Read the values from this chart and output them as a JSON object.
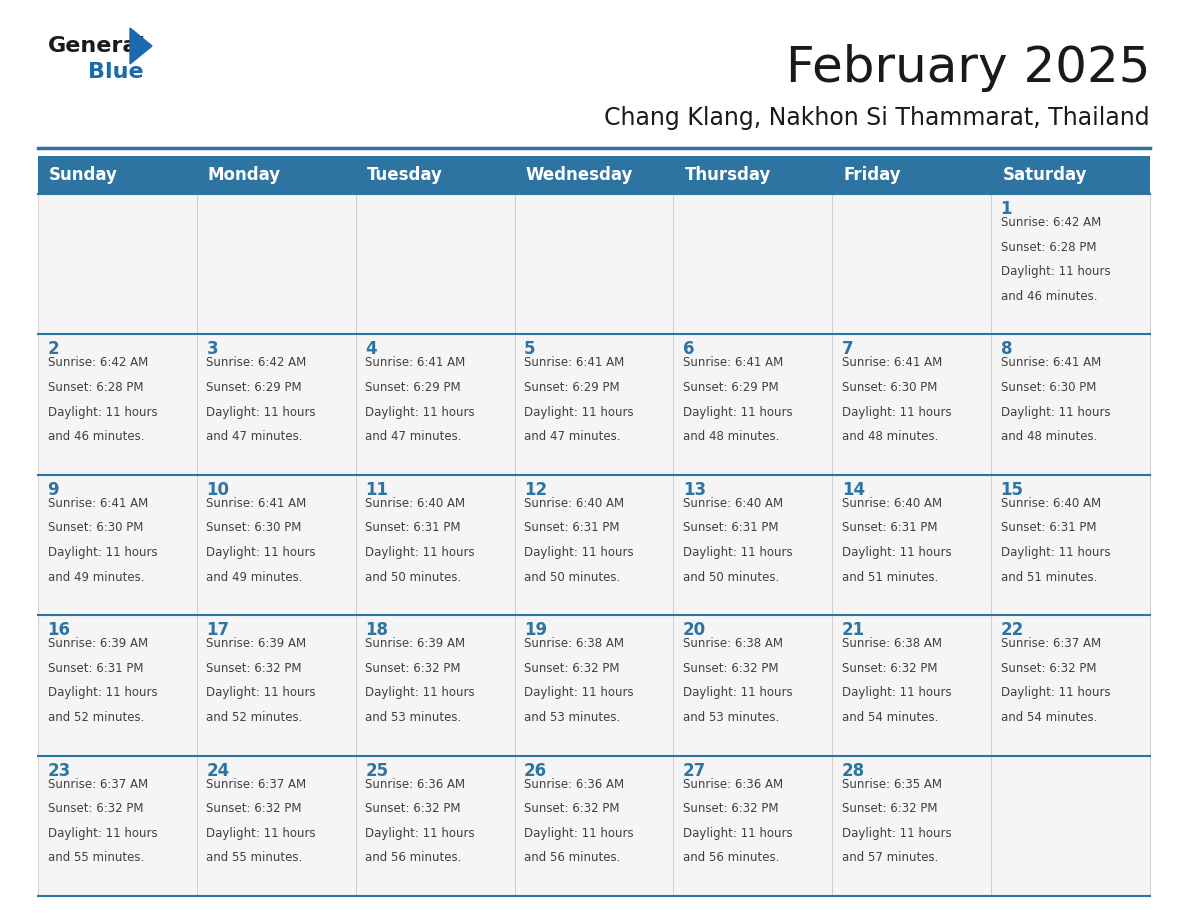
{
  "title": "February 2025",
  "subtitle": "Chang Klang, Nakhon Si Thammarat, Thailand",
  "header_bg": "#2E74A3",
  "header_text_color": "#FFFFFF",
  "cell_bg": "#F5F5F5",
  "day_number_color": "#2E74A3",
  "text_color": "#404040",
  "border_color": "#2E74A3",
  "days_of_week": [
    "Sunday",
    "Monday",
    "Tuesday",
    "Wednesday",
    "Thursday",
    "Friday",
    "Saturday"
  ],
  "weeks": [
    [
      {
        "day": null,
        "sunrise": null,
        "sunset": null,
        "daylight": null
      },
      {
        "day": null,
        "sunrise": null,
        "sunset": null,
        "daylight": null
      },
      {
        "day": null,
        "sunrise": null,
        "sunset": null,
        "daylight": null
      },
      {
        "day": null,
        "sunrise": null,
        "sunset": null,
        "daylight": null
      },
      {
        "day": null,
        "sunrise": null,
        "sunset": null,
        "daylight": null
      },
      {
        "day": null,
        "sunrise": null,
        "sunset": null,
        "daylight": null
      },
      {
        "day": 1,
        "sunrise": "6:42 AM",
        "sunset": "6:28 PM",
        "daylight": "11 hours and 46 minutes."
      }
    ],
    [
      {
        "day": 2,
        "sunrise": "6:42 AM",
        "sunset": "6:28 PM",
        "daylight": "11 hours and 46 minutes."
      },
      {
        "day": 3,
        "sunrise": "6:42 AM",
        "sunset": "6:29 PM",
        "daylight": "11 hours and 47 minutes."
      },
      {
        "day": 4,
        "sunrise": "6:41 AM",
        "sunset": "6:29 PM",
        "daylight": "11 hours and 47 minutes."
      },
      {
        "day": 5,
        "sunrise": "6:41 AM",
        "sunset": "6:29 PM",
        "daylight": "11 hours and 47 minutes."
      },
      {
        "day": 6,
        "sunrise": "6:41 AM",
        "sunset": "6:29 PM",
        "daylight": "11 hours and 48 minutes."
      },
      {
        "day": 7,
        "sunrise": "6:41 AM",
        "sunset": "6:30 PM",
        "daylight": "11 hours and 48 minutes."
      },
      {
        "day": 8,
        "sunrise": "6:41 AM",
        "sunset": "6:30 PM",
        "daylight": "11 hours and 48 minutes."
      }
    ],
    [
      {
        "day": 9,
        "sunrise": "6:41 AM",
        "sunset": "6:30 PM",
        "daylight": "11 hours and 49 minutes."
      },
      {
        "day": 10,
        "sunrise": "6:41 AM",
        "sunset": "6:30 PM",
        "daylight": "11 hours and 49 minutes."
      },
      {
        "day": 11,
        "sunrise": "6:40 AM",
        "sunset": "6:31 PM",
        "daylight": "11 hours and 50 minutes."
      },
      {
        "day": 12,
        "sunrise": "6:40 AM",
        "sunset": "6:31 PM",
        "daylight": "11 hours and 50 minutes."
      },
      {
        "day": 13,
        "sunrise": "6:40 AM",
        "sunset": "6:31 PM",
        "daylight": "11 hours and 50 minutes."
      },
      {
        "day": 14,
        "sunrise": "6:40 AM",
        "sunset": "6:31 PM",
        "daylight": "11 hours and 51 minutes."
      },
      {
        "day": 15,
        "sunrise": "6:40 AM",
        "sunset": "6:31 PM",
        "daylight": "11 hours and 51 minutes."
      }
    ],
    [
      {
        "day": 16,
        "sunrise": "6:39 AM",
        "sunset": "6:31 PM",
        "daylight": "11 hours and 52 minutes."
      },
      {
        "day": 17,
        "sunrise": "6:39 AM",
        "sunset": "6:32 PM",
        "daylight": "11 hours and 52 minutes."
      },
      {
        "day": 18,
        "sunrise": "6:39 AM",
        "sunset": "6:32 PM",
        "daylight": "11 hours and 53 minutes."
      },
      {
        "day": 19,
        "sunrise": "6:38 AM",
        "sunset": "6:32 PM",
        "daylight": "11 hours and 53 minutes."
      },
      {
        "day": 20,
        "sunrise": "6:38 AM",
        "sunset": "6:32 PM",
        "daylight": "11 hours and 53 minutes."
      },
      {
        "day": 21,
        "sunrise": "6:38 AM",
        "sunset": "6:32 PM",
        "daylight": "11 hours and 54 minutes."
      },
      {
        "day": 22,
        "sunrise": "6:37 AM",
        "sunset": "6:32 PM",
        "daylight": "11 hours and 54 minutes."
      }
    ],
    [
      {
        "day": 23,
        "sunrise": "6:37 AM",
        "sunset": "6:32 PM",
        "daylight": "11 hours and 55 minutes."
      },
      {
        "day": 24,
        "sunrise": "6:37 AM",
        "sunset": "6:32 PM",
        "daylight": "11 hours and 55 minutes."
      },
      {
        "day": 25,
        "sunrise": "6:36 AM",
        "sunset": "6:32 PM",
        "daylight": "11 hours and 56 minutes."
      },
      {
        "day": 26,
        "sunrise": "6:36 AM",
        "sunset": "6:32 PM",
        "daylight": "11 hours and 56 minutes."
      },
      {
        "day": 27,
        "sunrise": "6:36 AM",
        "sunset": "6:32 PM",
        "daylight": "11 hours and 56 minutes."
      },
      {
        "day": 28,
        "sunrise": "6:35 AM",
        "sunset": "6:32 PM",
        "daylight": "11 hours and 57 minutes."
      },
      {
        "day": null,
        "sunrise": null,
        "sunset": null,
        "daylight": null
      }
    ]
  ],
  "logo_color_general": "#1a1a1a",
  "logo_color_blue": "#1a6aad",
  "logo_triangle_color": "#1a6aad",
  "title_fontsize": 36,
  "subtitle_fontsize": 17,
  "header_fontsize": 12,
  "day_num_fontsize": 12,
  "cell_text_fontsize": 8.5
}
